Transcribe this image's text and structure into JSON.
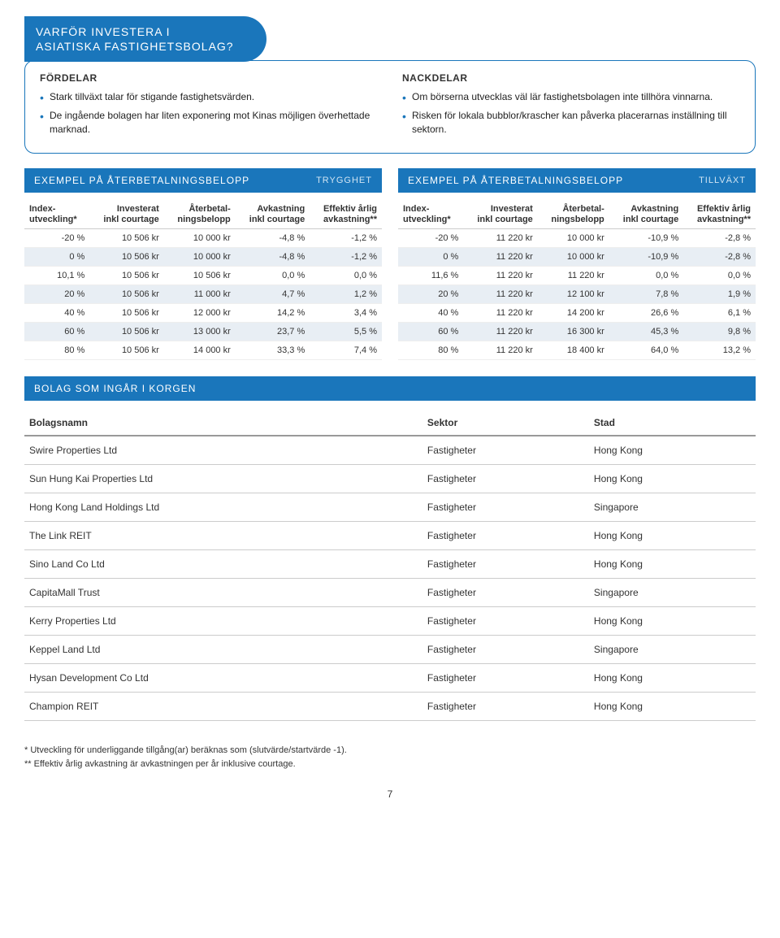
{
  "callout": {
    "title_line1": "VARFÖR INVESTERA I",
    "title_line2": "ASIATISKA FASTIGHETSBOLAG?",
    "pros_title": "FÖRDELAR",
    "cons_title": "NACKDELAR",
    "pros": [
      "Stark tillväxt talar för stigande fastighetsvärden.",
      "De ingående bolagen har liten exponering mot Kinas möjligen överhettade marknad."
    ],
    "cons": [
      "Om börserna utvecklas väl lär fastighetsbolagen inte tillhöra vinnarna.",
      "Risken för lokala bubblor/krascher kan påverka placerarnas inställning till sektorn."
    ]
  },
  "examples": {
    "left": {
      "title": "EXEMPEL PÅ ÅTERBETALNINGSBELOPP",
      "tag": "TRYGGHET",
      "columns": [
        "Index-\nutveckling*",
        "Investerat\ninkl courtage",
        "Återbetal-\nningsbelopp",
        "Avkastning\ninkl courtage",
        "Effektiv årlig\navkastning**"
      ],
      "rows": [
        [
          "-20 %",
          "10 506 kr",
          "10 000 kr",
          "-4,8 %",
          "-1,2 %"
        ],
        [
          "0 %",
          "10 506 kr",
          "10 000 kr",
          "-4,8 %",
          "-1,2 %"
        ],
        [
          "10,1 %",
          "10 506 kr",
          "10 506 kr",
          "0,0 %",
          "0,0 %"
        ],
        [
          "20 %",
          "10 506 kr",
          "11 000 kr",
          "4,7 %",
          "1,2 %"
        ],
        [
          "40 %",
          "10 506 kr",
          "12 000 kr",
          "14,2 %",
          "3,4 %"
        ],
        [
          "60 %",
          "10 506 kr",
          "13 000 kr",
          "23,7 %",
          "5,5 %"
        ],
        [
          "80 %",
          "10 506 kr",
          "14 000 kr",
          "33,3 %",
          "7,4 %"
        ]
      ]
    },
    "right": {
      "title": "EXEMPEL PÅ ÅTERBETALNINGSBELOPP",
      "tag": "TILLVÄXT",
      "columns": [
        "Index-\nutveckling*",
        "Investerat\ninkl courtage",
        "Återbetal-\nningsbelopp",
        "Avkastning\ninkl courtage",
        "Effektiv årlig\navkastning**"
      ],
      "rows": [
        [
          "-20 %",
          "11 220 kr",
          "10 000 kr",
          "-10,9 %",
          "-2,8 %"
        ],
        [
          "0 %",
          "11 220 kr",
          "10 000 kr",
          "-10,9 %",
          "-2,8 %"
        ],
        [
          "11,6 %",
          "11 220 kr",
          "11 220 kr",
          "0,0 %",
          "0,0 %"
        ],
        [
          "20 %",
          "11 220 kr",
          "12 100 kr",
          "7,8 %",
          "1,9 %"
        ],
        [
          "40 %",
          "11 220 kr",
          "14 200 kr",
          "26,6 %",
          "6,1 %"
        ],
        [
          "60 %",
          "11 220 kr",
          "16 300 kr",
          "45,3 %",
          "9,8 %"
        ],
        [
          "80 %",
          "11 220 kr",
          "18 400 kr",
          "64,0 %",
          "13,2 %"
        ]
      ]
    }
  },
  "companies": {
    "title": "BOLAG SOM INGÅR I KORGEN",
    "columns": [
      "Bolagsnamn",
      "Sektor",
      "Stad"
    ],
    "rows": [
      [
        "Swire Properties Ltd",
        "Fastigheter",
        "Hong Kong"
      ],
      [
        "Sun Hung Kai Properties Ltd",
        "Fastigheter",
        "Hong Kong"
      ],
      [
        "Hong Kong Land Holdings Ltd",
        "Fastigheter",
        "Singapore"
      ],
      [
        "The Link REIT",
        "Fastigheter",
        "Hong Kong"
      ],
      [
        "Sino Land Co Ltd",
        "Fastigheter",
        "Hong Kong"
      ],
      [
        "CapitaMall Trust",
        "Fastigheter",
        "Singapore"
      ],
      [
        "Kerry Properties Ltd",
        "Fastigheter",
        "Hong Kong"
      ],
      [
        "Keppel Land Ltd",
        "Fastigheter",
        "Singapore"
      ],
      [
        "Hysan Development Co Ltd",
        "Fastigheter",
        "Hong Kong"
      ],
      [
        "Champion REIT",
        "Fastigheter",
        "Hong Kong"
      ]
    ]
  },
  "footnotes": {
    "f1": "*   Utveckling för underliggande tillgång(ar) beräknas som (slutvärde/startvärde -1).",
    "f2": "**  Effektiv årlig avkastning är avkastningen per år inklusive courtage."
  },
  "page_number": "7",
  "colors": {
    "brand": "#1a76bb",
    "row_alt": "#e8eef4"
  }
}
